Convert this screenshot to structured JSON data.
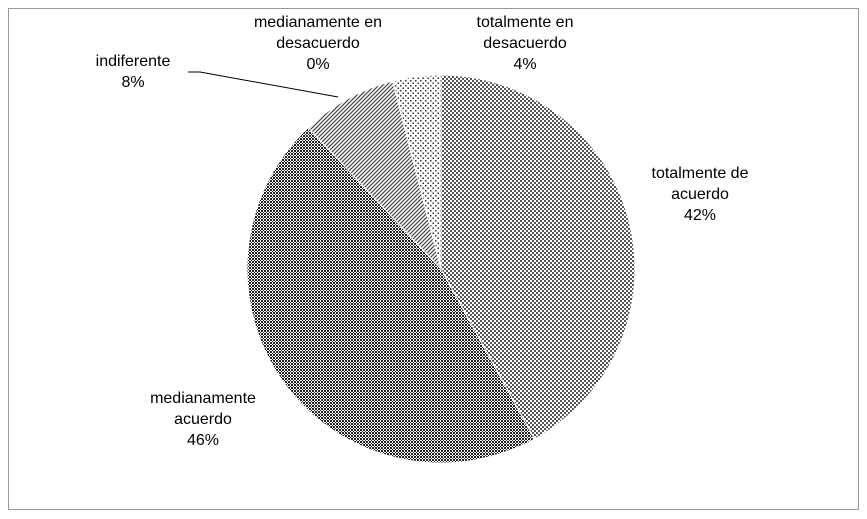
{
  "chart_data": {
    "type": "pie",
    "categories": [
      "totalmente de acuerdo",
      "medianamente acuerdo",
      "indiferente",
      "medianamente en desacuerdo",
      "totalmente en desacuerdo"
    ],
    "values": [
      42,
      46,
      8,
      0,
      4
    ],
    "value_labels": [
      "42%",
      "46%",
      "8%",
      "0%",
      "4%"
    ],
    "colors": [
      "#555555",
      "#222222",
      "#444444",
      "#666666",
      "#333333"
    ]
  }
}
